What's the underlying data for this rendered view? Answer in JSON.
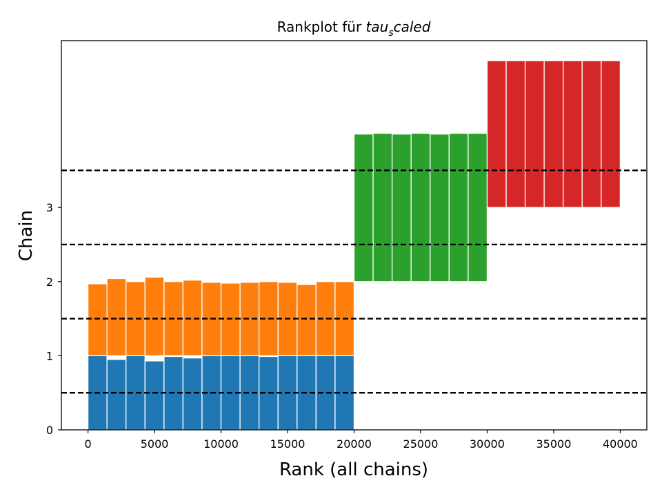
{
  "chart_data": {
    "type": "bar",
    "title_plain": "Rankplot für ",
    "title_math": "tau",
    "title_math_sub": "s",
    "title_math_rest": "caled",
    "xlabel": "Rank (all chains)",
    "ylabel": "Chain",
    "xlim": [
      -2000,
      42000
    ],
    "ylim": [
      0,
      5.25
    ],
    "x_ticks": [
      0,
      5000,
      10000,
      15000,
      20000,
      25000,
      30000,
      35000,
      40000
    ],
    "x_tick_labels": [
      "0",
      "5000",
      "10000",
      "15000",
      "20000",
      "25000",
      "30000",
      "35000",
      "40000"
    ],
    "y_ticks": [
      0,
      1,
      2,
      3
    ],
    "y_tick_labels": [
      "0",
      "1",
      "2",
      "3"
    ],
    "reference_lines": [
      0.5,
      1.5,
      2.5,
      3.5
    ],
    "grid": false,
    "series": [
      {
        "chain": 0,
        "color": "#1f77b4",
        "baseline": 0,
        "bins": [
          [
            0,
            1428
          ],
          [
            1428,
            2857
          ],
          [
            2857,
            4285
          ],
          [
            4285,
            5714
          ],
          [
            5714,
            7142
          ],
          [
            7142,
            8571
          ],
          [
            8571,
            10000
          ],
          [
            10000,
            11428
          ],
          [
            11428,
            12857
          ],
          [
            12857,
            14285
          ],
          [
            14285,
            15714
          ],
          [
            15714,
            17142
          ],
          [
            17142,
            18571
          ],
          [
            18571,
            20000
          ]
        ],
        "heights": [
          1.0,
          0.95,
          1.0,
          0.93,
          0.99,
          0.97,
          1.0,
          1.0,
          1.0,
          0.99,
          1.0,
          1.0,
          1.0,
          1.0
        ]
      },
      {
        "chain": 1,
        "color": "#ff7f0e",
        "baseline": 1,
        "bins": [
          [
            0,
            1428
          ],
          [
            1428,
            2857
          ],
          [
            2857,
            4285
          ],
          [
            4285,
            5714
          ],
          [
            5714,
            7142
          ],
          [
            7142,
            8571
          ],
          [
            8571,
            10000
          ],
          [
            10000,
            11428
          ],
          [
            11428,
            12857
          ],
          [
            12857,
            14285
          ],
          [
            14285,
            15714
          ],
          [
            15714,
            17142
          ],
          [
            17142,
            18571
          ],
          [
            18571,
            20000
          ]
        ],
        "heights": [
          0.97,
          1.04,
          1.0,
          1.06,
          1.0,
          1.02,
          0.99,
          0.98,
          0.99,
          1.0,
          0.99,
          0.96,
          1.0,
          1.0
        ]
      },
      {
        "chain": 2,
        "color": "#2ca02c",
        "baseline": 2,
        "bins": [
          [
            20000,
            21428
          ],
          [
            21428,
            22857
          ],
          [
            22857,
            24285
          ],
          [
            24285,
            25714
          ],
          [
            25714,
            27142
          ],
          [
            27142,
            28571
          ],
          [
            28571,
            30000
          ]
        ],
        "heights": [
          1.99,
          2.0,
          1.99,
          2.0,
          1.99,
          2.0,
          2.0
        ]
      },
      {
        "chain": 3,
        "color": "#d62728",
        "baseline": 3,
        "bins": [
          [
            30000,
            31428
          ],
          [
            31428,
            32857
          ],
          [
            32857,
            34285
          ],
          [
            34285,
            35714
          ],
          [
            35714,
            37142
          ],
          [
            37142,
            38571
          ],
          [
            38571,
            40000
          ]
        ],
        "heights": [
          1.98,
          1.98,
          1.98,
          1.98,
          1.98,
          1.98,
          1.98
        ]
      }
    ]
  }
}
